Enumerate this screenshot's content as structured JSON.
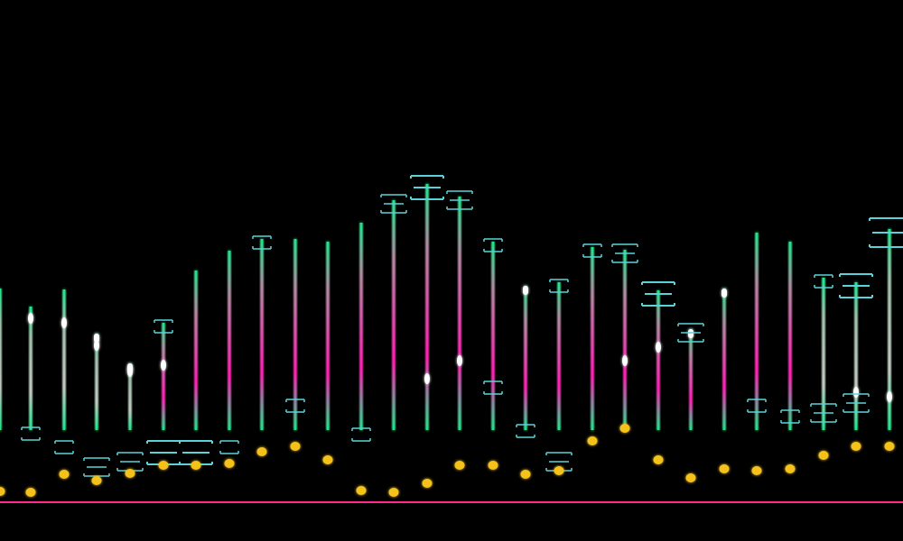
{
  "colors": {
    "background": "#000000",
    "stem_green": "#1fe58a",
    "stem_magenta": "#ff1fb4",
    "highlight": "#ffffff",
    "bracket": "#5ad2d8",
    "dot_yellow": "#f5c21b",
    "baseline": "#ff2a8a"
  }
}
